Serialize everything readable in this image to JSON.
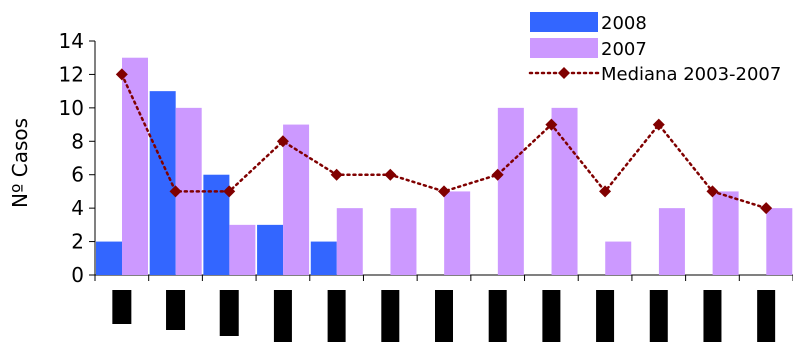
{
  "chart_data": {
    "type": "bar",
    "ylabel": "Nº Casos",
    "ylim": [
      0,
      14
    ],
    "yticks": [
      0,
      2,
      4,
      6,
      8,
      10,
      12,
      14
    ],
    "grid": false,
    "legend_position": "top-right",
    "category_count": 13,
    "series": [
      {
        "name": "2008",
        "kind": "bar",
        "color": "#3366ff",
        "values": [
          2,
          11,
          6,
          3,
          2,
          0,
          0,
          0,
          0,
          0,
          0,
          0,
          0
        ]
      },
      {
        "name": "2007",
        "kind": "bar",
        "color": "#cc99ff",
        "values": [
          13,
          10,
          3,
          9,
          4,
          4,
          5,
          10,
          10,
          2,
          4,
          5,
          4
        ]
      },
      {
        "name": "Mediana 2003-2007",
        "kind": "line",
        "color": "#800000",
        "marker": "diamond",
        "line_style": "dotted",
        "values": [
          12,
          5,
          5,
          8,
          6,
          6,
          5,
          6,
          9,
          5,
          9,
          5,
          4
        ]
      }
    ]
  }
}
